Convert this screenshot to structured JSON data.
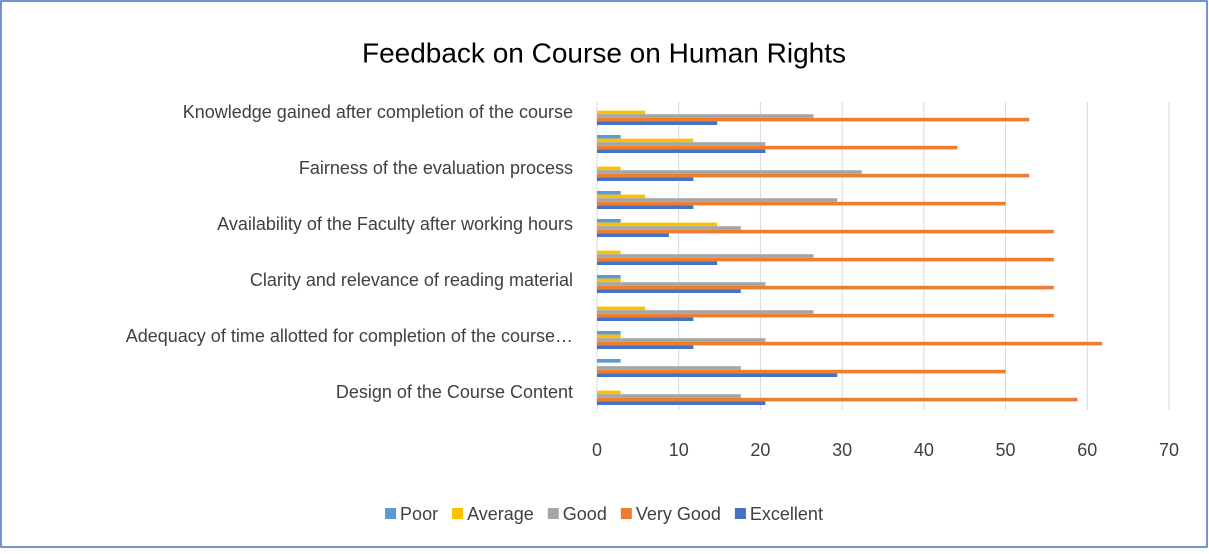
{
  "chart_data": {
    "type": "bar",
    "orientation": "horizontal",
    "title": "Feedback on Course on Human Rights",
    "categories": [
      "Design of the Course Content",
      null,
      "Adequacy of time allotted for completion of the course…",
      null,
      "Clarity and relevance of reading material",
      null,
      "Availability of the Faculty after working hours",
      null,
      "Fairness of the evaluation process",
      null,
      "Knowledge gained after completion of the course"
    ],
    "series": [
      {
        "name": "Poor",
        "color": "#5b9bd5",
        "values": [
          0,
          2.9,
          2.9,
          0,
          2.9,
          0,
          2.9,
          2.9,
          0,
          2.9,
          0
        ]
      },
      {
        "name": "Average",
        "color": "#ffc000",
        "values": [
          2.9,
          0,
          2.9,
          5.9,
          2.9,
          2.9,
          14.7,
          5.9,
          2.9,
          11.8,
          5.9
        ]
      },
      {
        "name": "Good",
        "color": "#a5a5a5",
        "values": [
          17.6,
          17.6,
          20.6,
          26.5,
          20.6,
          26.5,
          17.6,
          29.4,
          32.4,
          20.6,
          26.5
        ]
      },
      {
        "name": "Very Good",
        "color": "#ed7d31",
        "values": [
          58.8,
          50,
          61.8,
          55.9,
          55.9,
          55.9,
          55.9,
          50,
          52.9,
          44.1,
          52.9
        ]
      },
      {
        "name": "Excellent",
        "color": "#4472c4",
        "values": [
          20.6,
          29.4,
          11.8,
          11.8,
          17.6,
          14.7,
          8.8,
          11.8,
          11.8,
          20.6,
          14.7
        ]
      }
    ],
    "xlim": [
      0,
      70
    ],
    "xticks": [
      0,
      10,
      20,
      30,
      40,
      50,
      60,
      70
    ],
    "grid": true,
    "legend": "bottom"
  }
}
